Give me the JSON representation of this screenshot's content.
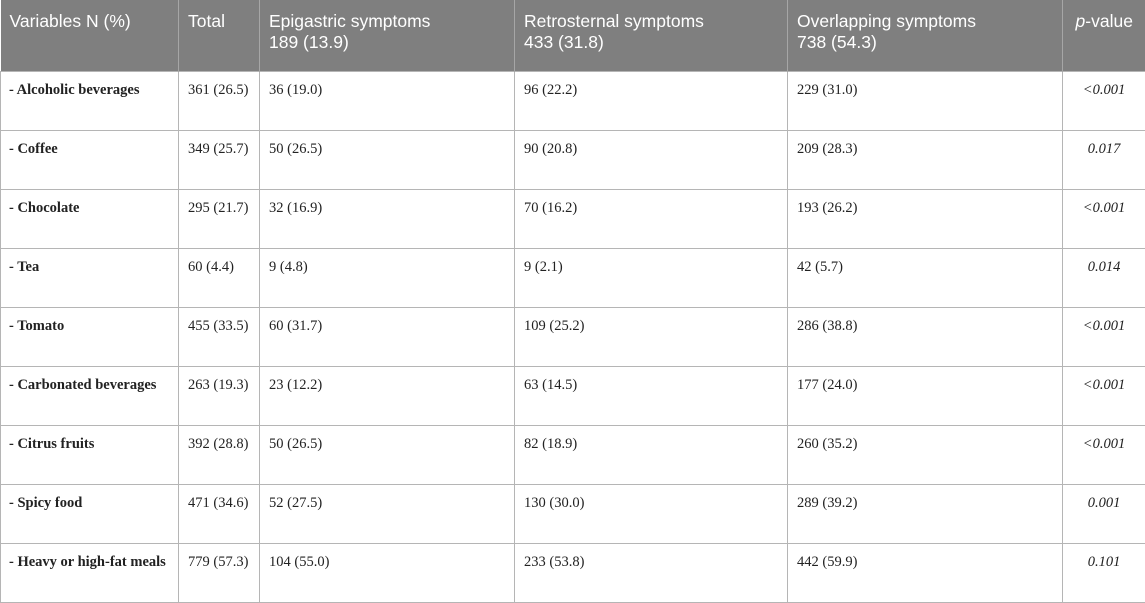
{
  "header": {
    "variables": "Variables N (%)",
    "total": "Total",
    "epigastric_line1": "Epigastric symptoms",
    "epigastric_line2": "189 (13.9)",
    "retrosternal_line1": "Retrosternal symptoms",
    "retrosternal_line2": "433 (31.8)",
    "overlapping_line1": "Overlapping symptoms",
    "overlapping_line2": "738 (54.3)",
    "p_italic": "p",
    "p_rest": "-value"
  },
  "rows": [
    {
      "variable": "- Alcoholic beverages",
      "total": "361 (26.5)",
      "epigastric": "36 (19.0)",
      "retrosternal": "96 (22.2)",
      "overlapping": "229 (31.0)",
      "p": "<0.001"
    },
    {
      "variable": "- Coffee",
      "total": "349 (25.7)",
      "epigastric": "50 (26.5)",
      "retrosternal": "90 (20.8)",
      "overlapping": "209 (28.3)",
      "p": "0.017"
    },
    {
      "variable": "- Chocolate",
      "total": "295 (21.7)",
      "epigastric": "32 (16.9)",
      "retrosternal": "70 (16.2)",
      "overlapping": "193 (26.2)",
      "p": "<0.001"
    },
    {
      "variable": "- Tea",
      "total": "60 (4.4)",
      "epigastric": "9 (4.8)",
      "retrosternal": "9 (2.1)",
      "overlapping": "42 (5.7)",
      "p": "0.014"
    },
    {
      "variable": "- Tomato",
      "total": "455 (33.5)",
      "epigastric": "60 (31.7)",
      "retrosternal": "109 (25.2)",
      "overlapping": "286 (38.8)",
      "p": "<0.001"
    },
    {
      "variable": "- Carbonated beverages",
      "total": "263 (19.3)",
      "epigastric": "23 (12.2)",
      "retrosternal": "63 (14.5)",
      "overlapping": "177 (24.0)",
      "p": "<0.001"
    },
    {
      "variable": "- Citrus fruits",
      "total": "392 (28.8)",
      "epigastric": "50 (26.5)",
      "retrosternal": "82 (18.9)",
      "overlapping": "260 (35.2)",
      "p": "<0.001"
    },
    {
      "variable": "- Spicy food",
      "total": "471 (34.6)",
      "epigastric": "52 (27.5)",
      "retrosternal": "130 (30.0)",
      "overlapping": "289 (39.2)",
      "p": "0.001"
    },
    {
      "variable": "- Heavy or high-fat meals",
      "total": "779 (57.3)",
      "epigastric": "104 (55.0)",
      "retrosternal": "233 (53.8)",
      "overlapping": "442 (59.9)",
      "p": "0.101"
    }
  ]
}
